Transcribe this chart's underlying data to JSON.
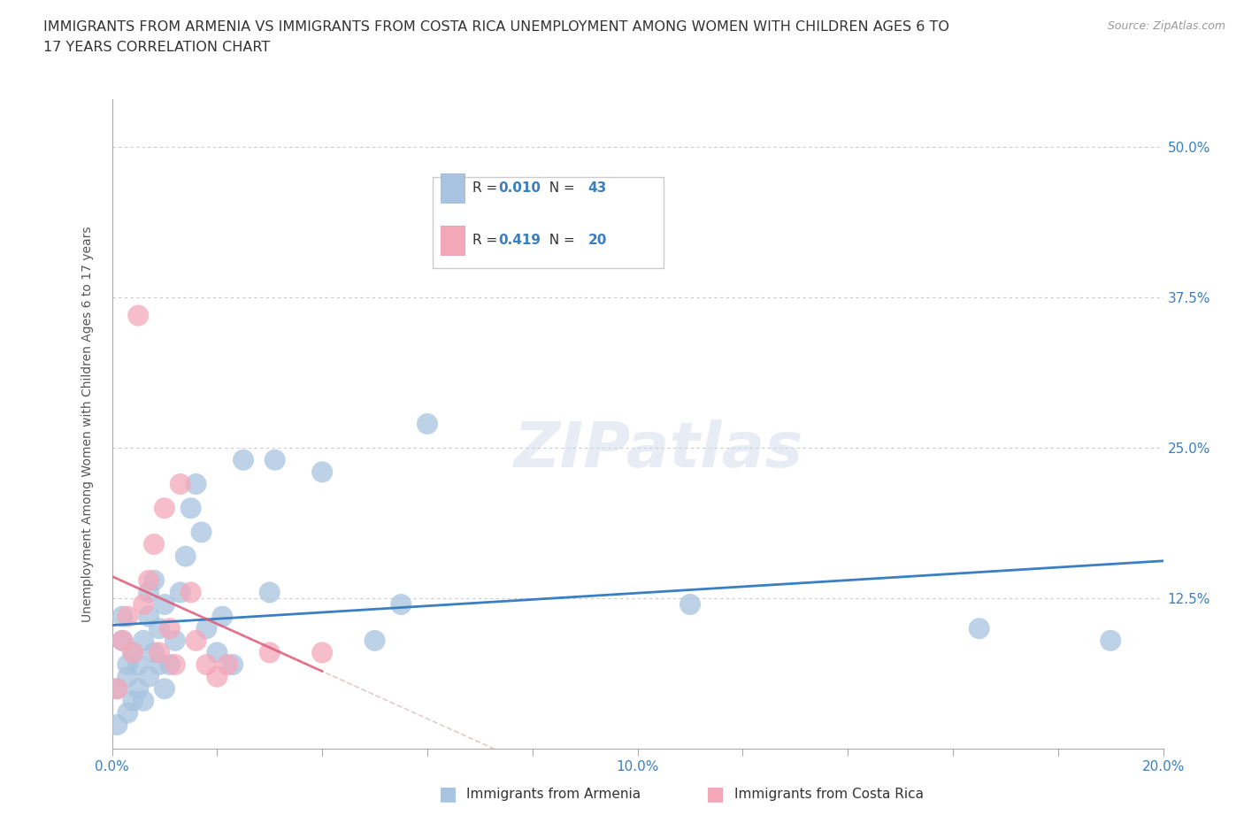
{
  "title_line1": "IMMIGRANTS FROM ARMENIA VS IMMIGRANTS FROM COSTA RICA UNEMPLOYMENT AMONG WOMEN WITH CHILDREN AGES 6 TO",
  "title_line2": "17 YEARS CORRELATION CHART",
  "source": "Source: ZipAtlas.com",
  "ylabel": "Unemployment Among Women with Children Ages 6 to 17 years",
  "xlim": [
    0.0,
    0.2
  ],
  "ylim": [
    0.0,
    0.54
  ],
  "xticks": [
    0.0,
    0.02,
    0.04,
    0.06,
    0.08,
    0.1,
    0.12,
    0.14,
    0.16,
    0.18,
    0.2
  ],
  "xticklabels_show": [
    0.0,
    0.1,
    0.2
  ],
  "yticks": [
    0.0,
    0.125,
    0.25,
    0.375,
    0.5
  ],
  "yticklabels": [
    "",
    "12.5%",
    "25.0%",
    "37.5%",
    "50.0%"
  ],
  "armenia_color": "#a8c4e0",
  "costa_rica_color": "#f4a7b9",
  "armenia_trend_color": "#3a7fc1",
  "costa_rica_trend_color": "#e05878",
  "armenia_R": 0.01,
  "armenia_N": 43,
  "costa_rica_R": 0.419,
  "costa_rica_N": 20,
  "watermark": "ZIPatlas",
  "armenia_x": [
    0.001,
    0.001,
    0.002,
    0.002,
    0.003,
    0.003,
    0.003,
    0.004,
    0.004,
    0.005,
    0.005,
    0.006,
    0.006,
    0.007,
    0.007,
    0.007,
    0.008,
    0.008,
    0.009,
    0.009,
    0.01,
    0.01,
    0.011,
    0.012,
    0.013,
    0.014,
    0.015,
    0.016,
    0.017,
    0.018,
    0.02,
    0.021,
    0.023,
    0.025,
    0.03,
    0.031,
    0.04,
    0.05,
    0.055,
    0.06,
    0.11,
    0.165,
    0.19
  ],
  "armenia_y": [
    0.02,
    0.05,
    0.09,
    0.11,
    0.03,
    0.06,
    0.07,
    0.04,
    0.08,
    0.05,
    0.07,
    0.04,
    0.09,
    0.11,
    0.13,
    0.06,
    0.08,
    0.14,
    0.07,
    0.1,
    0.12,
    0.05,
    0.07,
    0.09,
    0.13,
    0.16,
    0.2,
    0.22,
    0.18,
    0.1,
    0.08,
    0.11,
    0.07,
    0.24,
    0.13,
    0.24,
    0.23,
    0.09,
    0.12,
    0.27,
    0.12,
    0.1,
    0.09
  ],
  "costa_rica_x": [
    0.001,
    0.002,
    0.003,
    0.004,
    0.005,
    0.006,
    0.007,
    0.008,
    0.009,
    0.01,
    0.011,
    0.012,
    0.013,
    0.015,
    0.016,
    0.018,
    0.02,
    0.022,
    0.03,
    0.04
  ],
  "costa_rica_y": [
    0.05,
    0.09,
    0.11,
    0.08,
    0.36,
    0.12,
    0.14,
    0.17,
    0.08,
    0.2,
    0.1,
    0.07,
    0.22,
    0.13,
    0.09,
    0.07,
    0.06,
    0.07,
    0.08,
    0.08
  ],
  "background_color": "#ffffff",
  "grid_color": "#cccccc",
  "title_color": "#333333",
  "tick_color": "#3a7fc1",
  "label_color": "#555555"
}
